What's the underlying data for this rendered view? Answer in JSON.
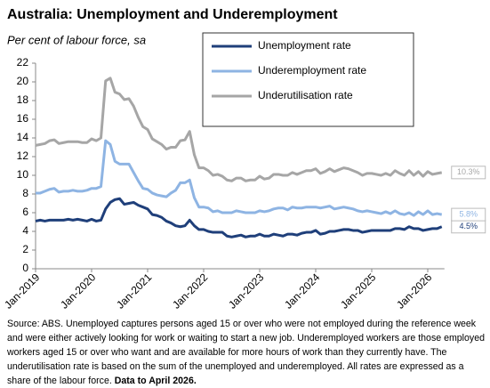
{
  "chart_data": {
    "type": "line",
    "title": "Australia: Unemployment and Underemployment",
    "subtitle": "Per cent of labour force, sa",
    "categories": [
      "Jan-2019",
      "Feb-2019",
      "Mar-2019",
      "Apr-2019",
      "May-2019",
      "Jun-2019",
      "Jul-2019",
      "Aug-2019",
      "Sep-2019",
      "Oct-2019",
      "Nov-2019",
      "Dec-2019",
      "Jan-2020",
      "Feb-2020",
      "Mar-2020",
      "Apr-2020",
      "May-2020",
      "Jun-2020",
      "Jul-2020",
      "Aug-2020",
      "Sep-2020",
      "Oct-2020",
      "Nov-2020",
      "Dec-2020",
      "Jan-2021",
      "Feb-2021",
      "Mar-2021",
      "Apr-2021",
      "May-2021",
      "Jun-2021",
      "Jul-2021",
      "Aug-2021",
      "Sep-2021",
      "Oct-2021",
      "Nov-2021",
      "Dec-2021",
      "Jan-2022",
      "Feb-2022",
      "Mar-2022",
      "Apr-2022",
      "May-2022",
      "Jun-2022",
      "Jul-2022",
      "Aug-2022",
      "Sep-2022",
      "Oct-2022",
      "Nov-2022",
      "Dec-2022",
      "Jan-2023",
      "Feb-2023",
      "Mar-2023",
      "Apr-2023",
      "May-2023",
      "Jun-2023",
      "Jul-2023",
      "Aug-2023",
      "Sep-2023",
      "Oct-2023",
      "Nov-2023",
      "Dec-2023",
      "Jan-2024",
      "Feb-2024",
      "Mar-2024",
      "Apr-2024",
      "May-2024",
      "Jun-2024",
      "Jul-2024",
      "Aug-2024",
      "Sep-2024",
      "Oct-2024",
      "Nov-2024",
      "Dec-2024",
      "Jan-2025",
      "Feb-2025",
      "Mar-2025",
      "Apr-2025",
      "May-2025",
      "Jun-2025",
      "Jul-2025",
      "Aug-2025",
      "Sep-2025",
      "Oct-2025",
      "Nov-2025",
      "Dec-2025",
      "Jan-2026",
      "Feb-2026",
      "Mar-2026",
      "Apr-2026"
    ],
    "xtick_every": 12,
    "series": [
      {
        "name": "Unemployment rate",
        "color": "#1f3f7a",
        "end_label": "4.5%",
        "values": [
          5.1,
          5.2,
          5.1,
          5.2,
          5.2,
          5.2,
          5.2,
          5.3,
          5.2,
          5.3,
          5.2,
          5.1,
          5.3,
          5.1,
          5.2,
          6.4,
          7.1,
          7.4,
          7.5,
          6.9,
          7.0,
          7.1,
          6.8,
          6.6,
          6.4,
          5.8,
          5.7,
          5.5,
          5.1,
          4.9,
          4.6,
          4.5,
          4.6,
          5.2,
          4.6,
          4.2,
          4.2,
          4.0,
          3.9,
          3.9,
          3.9,
          3.5,
          3.4,
          3.5,
          3.6,
          3.4,
          3.5,
          3.5,
          3.7,
          3.5,
          3.5,
          3.7,
          3.6,
          3.5,
          3.7,
          3.7,
          3.6,
          3.8,
          3.9,
          3.9,
          4.1,
          3.7,
          3.8,
          4.0,
          4.0,
          4.1,
          4.2,
          4.2,
          4.1,
          4.1,
          3.9,
          4.0,
          4.1,
          4.1,
          4.1,
          4.1,
          4.1,
          4.3,
          4.3,
          4.2,
          4.5,
          4.3,
          4.3,
          4.1,
          4.2,
          4.3,
          4.3,
          4.5
        ]
      },
      {
        "name": "Underemployment rate",
        "color": "#8eb4e3",
        "end_label": "5.8%",
        "values": [
          8.1,
          8.1,
          8.3,
          8.5,
          8.6,
          8.2,
          8.3,
          8.3,
          8.4,
          8.3,
          8.3,
          8.4,
          8.6,
          8.6,
          8.8,
          13.7,
          13.3,
          11.5,
          11.2,
          11.2,
          11.2,
          10.3,
          9.4,
          8.6,
          8.5,
          8.1,
          7.9,
          7.8,
          7.7,
          8.1,
          8.4,
          9.2,
          9.2,
          9.5,
          7.6,
          6.6,
          6.6,
          6.5,
          6.1,
          6.2,
          6.0,
          6.0,
          6.0,
          6.2,
          6.1,
          6.0,
          6.0,
          6.0,
          6.2,
          6.1,
          6.2,
          6.4,
          6.5,
          6.5,
          6.3,
          6.6,
          6.5,
          6.5,
          6.6,
          6.6,
          6.6,
          6.5,
          6.6,
          6.7,
          6.4,
          6.5,
          6.6,
          6.5,
          6.4,
          6.2,
          6.1,
          6.2,
          6.1,
          6.0,
          5.9,
          6.1,
          5.9,
          6.2,
          5.9,
          5.8,
          6.0,
          5.7,
          6.1,
          5.8,
          6.2,
          5.8,
          5.9,
          5.8
        ]
      },
      {
        "name": "Underutilisation rate",
        "color": "#a6a6a6",
        "end_label": "10.3%",
        "values": [
          13.2,
          13.3,
          13.4,
          13.7,
          13.8,
          13.4,
          13.5,
          13.6,
          13.6,
          13.6,
          13.5,
          13.5,
          13.9,
          13.7,
          14.0,
          20.1,
          20.4,
          18.9,
          18.7,
          18.1,
          18.2,
          17.4,
          16.2,
          15.2,
          14.9,
          13.9,
          13.6,
          13.3,
          12.8,
          13.0,
          13.0,
          13.7,
          13.8,
          14.7,
          12.2,
          10.8,
          10.8,
          10.5,
          10.0,
          10.1,
          9.9,
          9.5,
          9.4,
          9.7,
          9.7,
          9.4,
          9.5,
          9.5,
          9.9,
          9.6,
          9.7,
          10.1,
          10.1,
          10.0,
          10.0,
          10.3,
          10.1,
          10.3,
          10.5,
          10.5,
          10.7,
          10.2,
          10.4,
          10.7,
          10.4,
          10.6,
          10.8,
          10.7,
          10.5,
          10.3,
          10.0,
          10.2,
          10.2,
          10.1,
          10.0,
          10.2,
          10.0,
          10.5,
          10.2,
          10.0,
          10.5,
          10.0,
          10.4,
          9.9,
          10.4,
          10.1,
          10.2,
          10.3
        ]
      }
    ],
    "ylim": [
      0,
      22
    ],
    "yticks": [
      0,
      2,
      4,
      6,
      8,
      10,
      12,
      14,
      16,
      18,
      20,
      22
    ],
    "grid": false,
    "legend": "upper center",
    "note": "Source: ABS. Unemployed captures persons aged 15 or over who were not employed during the reference week and were either actively looking for work or waiting to start a new job.  Underemployed workers are those employed workers aged 15 or over who want and are available for more hours of work than they currently have.  The underutilisation rate is based on the sum of the unemployed and underemployed. All rates are expressed as a share of the labour force.",
    "note_bold": "Data to April 2026."
  }
}
